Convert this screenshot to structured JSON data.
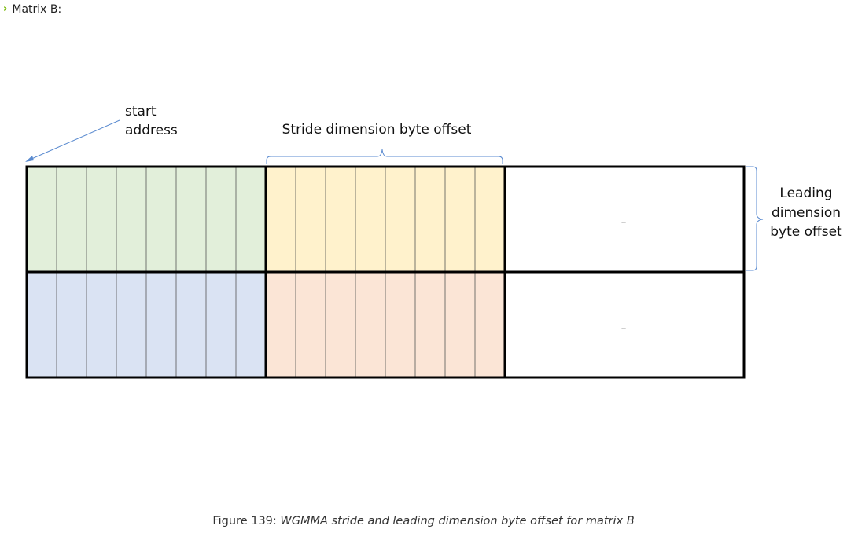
{
  "expander": {
    "label": "Matrix B:"
  },
  "diagram": {
    "start_label_line1": "start",
    "start_label_line2": "address",
    "stride_label": "Stride dimension byte offset",
    "leading_label_line1": "Leading",
    "leading_label_line2": "dimension",
    "leading_label_line3": "byte offset",
    "ellipsis": "...",
    "columns_per_block": 8,
    "colors": {
      "green": "#e2efda",
      "yellow": "#fff2cc",
      "blue": "#dae3f3",
      "orange": "#fbe5d6",
      "empty": "#ffffff",
      "border": "#000000",
      "bracket": "#5b8bd0"
    }
  },
  "caption": {
    "prefix": "Figure 139: ",
    "title": "WGMMA stride and leading dimension byte offset for matrix B"
  }
}
